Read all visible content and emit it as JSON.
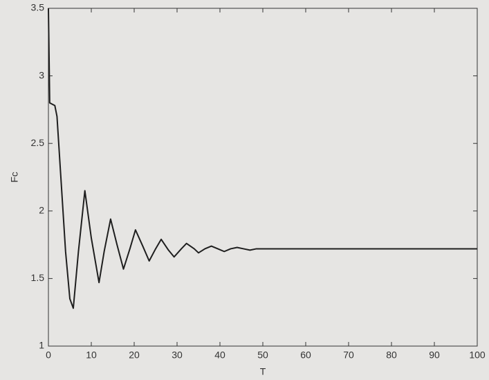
{
  "chart_data": {
    "type": "line",
    "x_label": "T",
    "y_label": "Fc",
    "x": [
      0,
      0.3,
      1.5,
      2,
      3,
      4,
      5,
      5.8,
      7,
      8.5,
      10,
      11.8,
      13,
      14.5,
      16,
      17.5,
      19,
      20.3,
      22,
      23.5,
      25,
      26.3,
      28,
      29.3,
      31,
      32.2,
      34,
      35,
      36.5,
      38,
      39.5,
      41,
      42.5,
      44,
      45.5,
      47,
      48.5,
      50,
      60,
      70,
      80,
      90,
      100
    ],
    "series": [
      {
        "name": "Fc",
        "color": "#1e1e1e",
        "values": [
          3.5,
          2.8,
          2.78,
          2.7,
          2.2,
          1.7,
          1.35,
          1.28,
          1.7,
          2.15,
          1.8,
          1.47,
          1.7,
          1.94,
          1.75,
          1.57,
          1.72,
          1.86,
          1.74,
          1.63,
          1.72,
          1.79,
          1.71,
          1.66,
          1.72,
          1.76,
          1.72,
          1.69,
          1.72,
          1.74,
          1.72,
          1.7,
          1.72,
          1.73,
          1.72,
          1.71,
          1.72,
          1.72,
          1.72,
          1.72,
          1.72,
          1.72,
          1.72
        ]
      }
    ],
    "xlim": [
      0,
      100
    ],
    "xticks": [
      0,
      10,
      20,
      30,
      40,
      50,
      60,
      70,
      80,
      90,
      100
    ],
    "ylim": [
      1,
      3.5
    ],
    "yticks": [
      1,
      1.5,
      2,
      2.5,
      3,
      3.5
    ],
    "grid": false
  }
}
